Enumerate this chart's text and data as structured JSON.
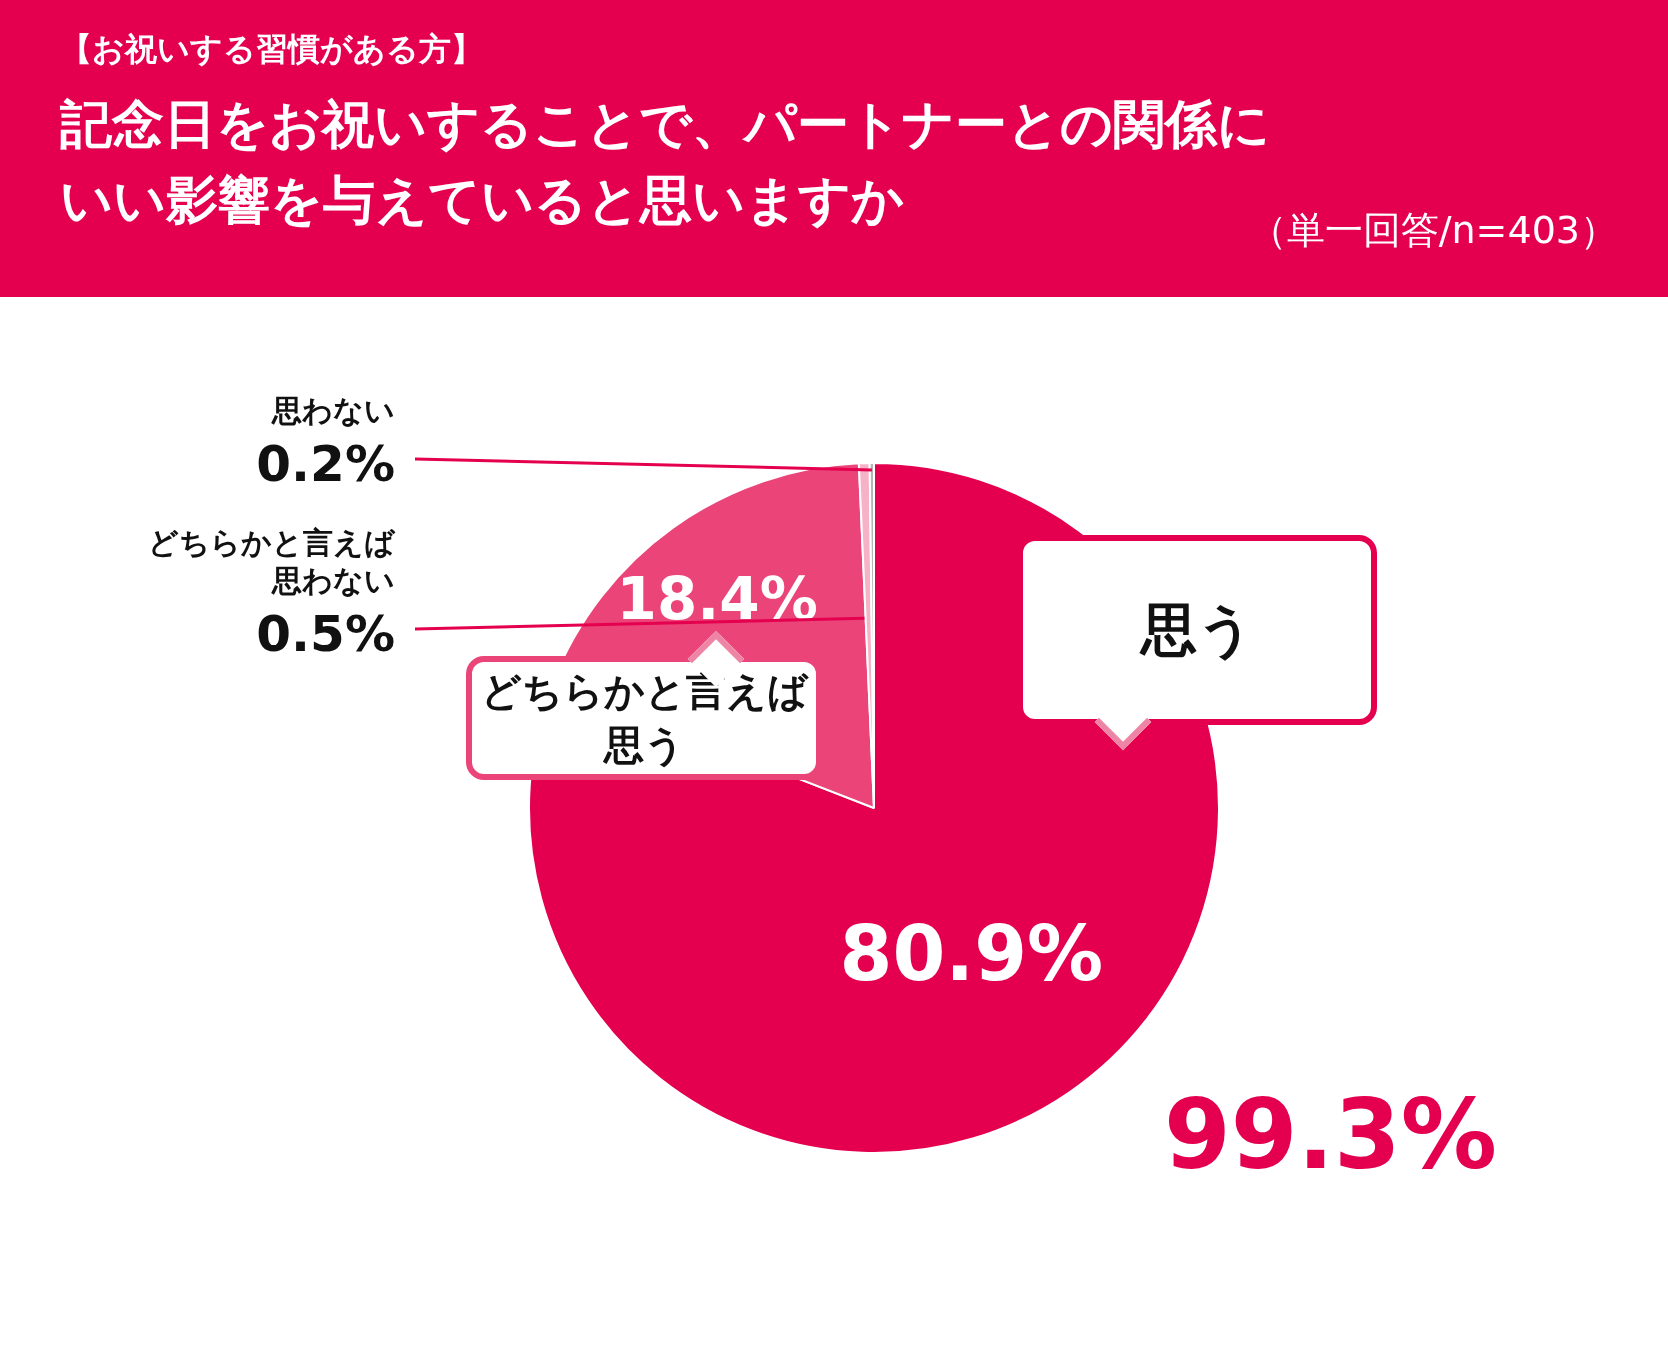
{
  "chart_data": {
    "type": "pie",
    "subtitle": "【お祝いする習慣がある方】",
    "title": "記念日をお祝いすることで、パートナーとの関係にいい影響を与えていると思いますか",
    "categories": [
      "思う",
      "どちらかと言えば思う",
      "どちらかと言えば思わない",
      "思わない"
    ],
    "values": [
      80.9,
      18.4,
      0.5,
      0.2
    ],
    "colors": [
      "#e4004f",
      "#ea4479",
      "#f6b3c8",
      "#b5b5b5"
    ],
    "value_labels": [
      "80.9%",
      "18.4%",
      "0.5%",
      "0.2%"
    ],
    "legend": false,
    "annotations": [
      "（単一回答/n=403）",
      "99.3%"
    ]
  }
}
